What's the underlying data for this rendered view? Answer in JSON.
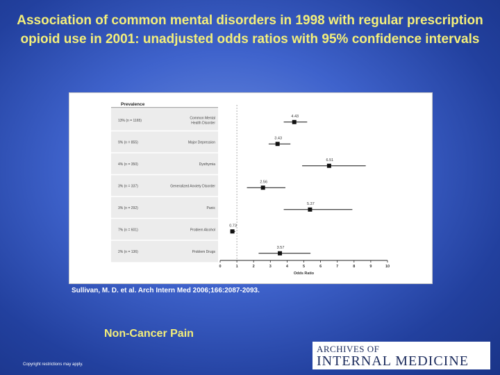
{
  "slide": {
    "title": "Association of common mental disorders in 1998 with regular prescription opioid use in 2001: unadjusted odds ratios with 95% confidence intervals",
    "citation": "Sullivan, M. D. et al. Arch Intern Med 2006;166:2087-2093.",
    "subtitle": "Non-Cancer Pain",
    "copyright": "Copyright restrictions may apply.",
    "journal_logo": {
      "line1": "ARCHIVES OF",
      "line2": "INTERNAL MEDICINE"
    },
    "colors": {
      "title": "#f4ef7a",
      "background": "#3f63cc"
    }
  },
  "chart_data": {
    "type": "forest",
    "prevalence_header": "Prevalence",
    "xlabel": "Odds Ratio",
    "xlim": [
      0,
      10
    ],
    "xticks": [
      0,
      1,
      2,
      3,
      4,
      5,
      6,
      7,
      8,
      9,
      10
    ],
    "reference_line": 1,
    "rows": [
      {
        "prevalence": "13% (n = 1165)",
        "label": [
          "Common Mental",
          "Health Disorder"
        ],
        "or": 4.43,
        "or_label": "4.43",
        "ci": [
          3.8,
          5.2
        ]
      },
      {
        "prevalence": "9% (n = 855)",
        "label": [
          "Major Depression"
        ],
        "or": 3.43,
        "or_label": "3.43",
        "ci": [
          2.9,
          4.2
        ]
      },
      {
        "prevalence": "4% (n = 350)",
        "label": [
          "Dysthymia"
        ],
        "or": 6.51,
        "or_label": "6.51",
        "ci": [
          4.9,
          8.7
        ]
      },
      {
        "prevalence": "3% (n = 337)",
        "label": [
          "Generalized Anxiety Disorder"
        ],
        "or": 2.56,
        "or_label": "2.56",
        "ci": [
          1.6,
          3.9
        ]
      },
      {
        "prevalence": "3% (n = 292)",
        "label": [
          "Panic"
        ],
        "or": 5.37,
        "or_label": "5.37",
        "ci": [
          3.8,
          7.9
        ]
      },
      {
        "prevalence": "7% (n = 601)",
        "label": [
          "Problem Alcohol"
        ],
        "or": 0.73,
        "or_label": "0.73",
        "ci": [
          0.6,
          0.9
        ]
      },
      {
        "prevalence": "2% (n = 136)",
        "label": [
          "Problem Drugs"
        ],
        "or": 3.57,
        "or_label": "3.57",
        "ci": [
          2.3,
          5.4
        ]
      }
    ]
  }
}
